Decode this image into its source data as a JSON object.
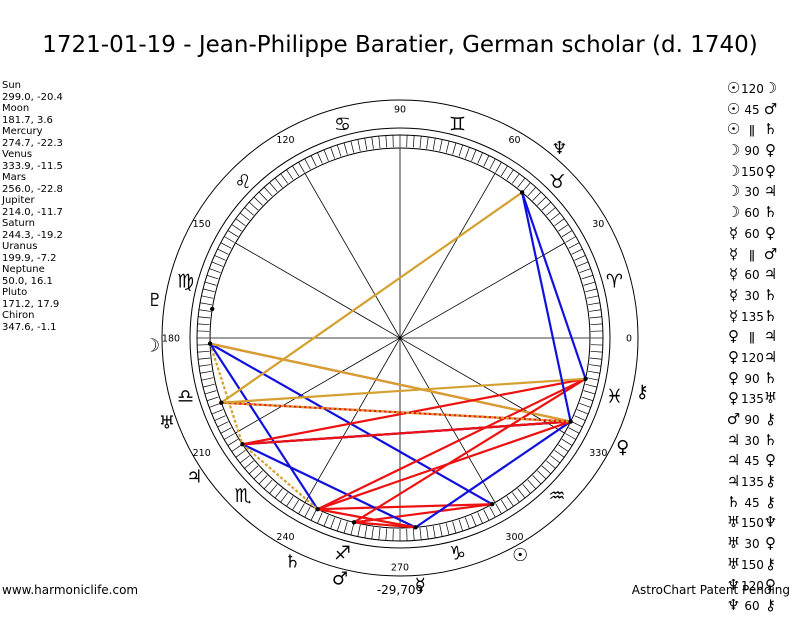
{
  "title": "1721-01-19 - Jean-Philippe Baratier, German scholar (d. 1740)",
  "chart_data": {
    "type": "scatter",
    "title": "1721-01-19 - Jean-Philippe Baratier, German scholar (d. 1740)",
    "description": "Harmonic astrology wheel; positions in ecliptic longitude (deg) and latitude",
    "degree_ticks": [
      "0",
      "30",
      "60",
      "90",
      "120",
      "150",
      "180",
      "210",
      "240",
      "270",
      "300",
      "330"
    ],
    "bodies": [
      {
        "name": "Sun",
        "glyph": "☉",
        "lon": 299.0,
        "lat": -20.4,
        "coords": "299.0, -20.4"
      },
      {
        "name": "Moon",
        "glyph": "☽",
        "lon": 181.7,
        "lat": 3.6,
        "coords": "181.7, 3.6"
      },
      {
        "name": "Mercury",
        "glyph": "☿",
        "lon": 274.7,
        "lat": -22.3,
        "coords": "274.7, -22.3"
      },
      {
        "name": "Venus",
        "glyph": "♀",
        "lon": 333.9,
        "lat": -11.5,
        "coords": "333.9, -11.5"
      },
      {
        "name": "Mars",
        "glyph": "♂",
        "lon": 256.0,
        "lat": -22.8,
        "coords": "256.0, -22.8"
      },
      {
        "name": "Jupiter",
        "glyph": "♃",
        "lon": 214.0,
        "lat": -11.7,
        "coords": "214.0, -11.7"
      },
      {
        "name": "Saturn",
        "glyph": "♄",
        "lon": 244.3,
        "lat": -19.2,
        "coords": "244.3, -19.2"
      },
      {
        "name": "Uranus",
        "glyph": "♅",
        "lon": 199.9,
        "lat": -7.2,
        "coords": "199.9, -7.2"
      },
      {
        "name": "Neptune",
        "glyph": "♆",
        "lon": 50.0,
        "lat": 16.1,
        "coords": "50.0, 16.1"
      },
      {
        "name": "Pluto",
        "glyph": "♇",
        "lon": 171.2,
        "lat": 17.9,
        "coords": "171.2, 17.9"
      },
      {
        "name": "Chiron",
        "glyph": "⚷",
        "lon": 347.6,
        "lat": -1.1,
        "coords": "347.6, -1.1"
      }
    ],
    "signs": [
      {
        "glyph": "♈",
        "start": 0
      },
      {
        "glyph": "♉",
        "start": 30
      },
      {
        "glyph": "♊",
        "start": 60
      },
      {
        "glyph": "♋",
        "start": 90
      },
      {
        "glyph": "♌",
        "start": 120
      },
      {
        "glyph": "♍",
        "start": 150
      },
      {
        "glyph": "♎",
        "start": 180
      },
      {
        "glyph": "♏",
        "start": 210
      },
      {
        "glyph": "♐",
        "start": 240
      },
      {
        "glyph": "♑",
        "start": 270
      },
      {
        "glyph": "♒",
        "start": 300
      },
      {
        "glyph": "♓",
        "start": 330
      }
    ],
    "aspects": [
      {
        "p1": "Sun",
        "p2": "Moon",
        "angle": "120",
        "g1": "☉",
        "g2": "☽",
        "sym": "120"
      },
      {
        "p1": "Sun",
        "p2": "Mars",
        "angle": "45",
        "g1": "☉",
        "g2": "♂",
        "sym": "45"
      },
      {
        "p1": "Sun",
        "p2": "Saturn",
        "angle": "parallel",
        "g1": "☉",
        "g2": "♄",
        "sym": "ǁ"
      },
      {
        "p1": "Moon",
        "p2": "Venus",
        "angle": "90",
        "g1": "☽",
        "g2": "♀",
        "sym": "90"
      },
      {
        "p1": "Moon",
        "p2": "Venus",
        "angle": "150",
        "g1": "☽",
        "g2": "♀",
        "sym": "150"
      },
      {
        "p1": "Moon",
        "p2": "Jupiter",
        "angle": "30",
        "g1": "☽",
        "g2": "♃",
        "sym": "30"
      },
      {
        "p1": "Moon",
        "p2": "Saturn",
        "angle": "60",
        "g1": "☽",
        "g2": "♄",
        "sym": "60"
      },
      {
        "p1": "Mercury",
        "p2": "Venus",
        "angle": "60",
        "g1": "☿",
        "g2": "♀",
        "sym": "60"
      },
      {
        "p1": "Mercury",
        "p2": "Mars",
        "angle": "parallel",
        "g1": "☿",
        "g2": "♂",
        "sym": "ǁ"
      },
      {
        "p1": "Mercury",
        "p2": "Jupiter",
        "angle": "60",
        "g1": "☿",
        "g2": "♃",
        "sym": "60"
      },
      {
        "p1": "Mercury",
        "p2": "Saturn",
        "angle": "30",
        "g1": "☿",
        "g2": "♄",
        "sym": "30"
      },
      {
        "p1": "Mercury",
        "p2": "Saturn",
        "angle": "135",
        "g1": "☿",
        "g2": "♄",
        "sym": "135"
      },
      {
        "p1": "Venus",
        "p2": "Jupiter",
        "angle": "parallel",
        "g1": "♀",
        "g2": "♃",
        "sym": "ǁ"
      },
      {
        "p1": "Venus",
        "p2": "Jupiter",
        "angle": "120",
        "g1": "♀",
        "g2": "♃",
        "sym": "120"
      },
      {
        "p1": "Venus",
        "p2": "Saturn",
        "angle": "90",
        "g1": "♀",
        "g2": "♄",
        "sym": "90"
      },
      {
        "p1": "Venus",
        "p2": "Uranus",
        "angle": "135",
        "g1": "♀",
        "g2": "♅",
        "sym": "135"
      },
      {
        "p1": "Mars",
        "p2": "Chiron",
        "angle": "90",
        "g1": "♂",
        "g2": "⚷",
        "sym": "90"
      },
      {
        "p1": "Jupiter",
        "p2": "Saturn",
        "angle": "30",
        "g1": "♃",
        "g2": "♄",
        "sym": "30"
      },
      {
        "p1": "Jupiter",
        "p2": "Venus",
        "angle": "45",
        "g1": "♃",
        "g2": "♀",
        "sym": "45"
      },
      {
        "p1": "Jupiter",
        "p2": "Chiron",
        "angle": "135",
        "g1": "♃",
        "g2": "⚷",
        "sym": "135"
      },
      {
        "p1": "Saturn",
        "p2": "Chiron",
        "angle": "45",
        "g1": "♄",
        "g2": "⚷",
        "sym": "45"
      },
      {
        "p1": "Uranus",
        "p2": "Neptune",
        "angle": "150",
        "g1": "♅",
        "g2": "♆",
        "sym": "150"
      },
      {
        "p1": "Uranus",
        "p2": "Venus",
        "angle": "30",
        "g1": "♅",
        "g2": "♀",
        "sym": "30"
      },
      {
        "p1": "Uranus",
        "p2": "Chiron",
        "angle": "150",
        "g1": "♅",
        "g2": "⚷",
        "sym": "150"
      },
      {
        "p1": "Neptune",
        "p2": "Venus",
        "angle": "120",
        "g1": "♆",
        "g2": "♀",
        "sym": "120"
      },
      {
        "p1": "Neptune",
        "p2": "Chiron",
        "angle": "60",
        "g1": "♆",
        "g2": "⚷",
        "sym": "60"
      }
    ],
    "aspect_colors": {
      "hard": "#ee1111",
      "soft": "#1111dd",
      "minor": "#d4a030"
    }
  },
  "footer": {
    "left": "www.harmoniclife.com",
    "center": "-29,709",
    "right": "AstroChart Patent Pending"
  }
}
